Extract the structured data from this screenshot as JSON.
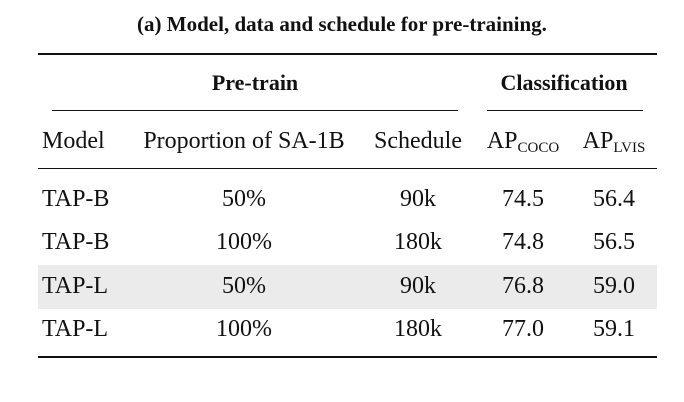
{
  "caption": "(a) Model, data and schedule for pre-training.",
  "groups": {
    "pretrain": "Pre-train",
    "classification": "Classification"
  },
  "headers": {
    "model": "Model",
    "proportion": "Proportion of SA-1B",
    "schedule": "Schedule",
    "ap_coco_main": "AP",
    "ap_coco_sub": "COCO",
    "ap_lvis_main": "AP",
    "ap_lvis_sub": "LVIS"
  },
  "rows": [
    {
      "model": "TAP-B",
      "proportion": "50%",
      "schedule": "90k",
      "ap_coco": "74.5",
      "ap_lvis": "56.4",
      "highlight": false
    },
    {
      "model": "TAP-B",
      "proportion": "100%",
      "schedule": "180k",
      "ap_coco": "74.8",
      "ap_lvis": "56.5",
      "highlight": false
    },
    {
      "model": "TAP-L",
      "proportion": "50%",
      "schedule": "90k",
      "ap_coco": "76.8",
      "ap_lvis": "59.0",
      "highlight": true
    },
    {
      "model": "TAP-L",
      "proportion": "100%",
      "schedule": "180k",
      "ap_coco": "77.0",
      "ap_lvis": "59.1",
      "highlight": false
    }
  ],
  "colors": {
    "highlight_row": "#ebebeb",
    "text": "#111111"
  }
}
